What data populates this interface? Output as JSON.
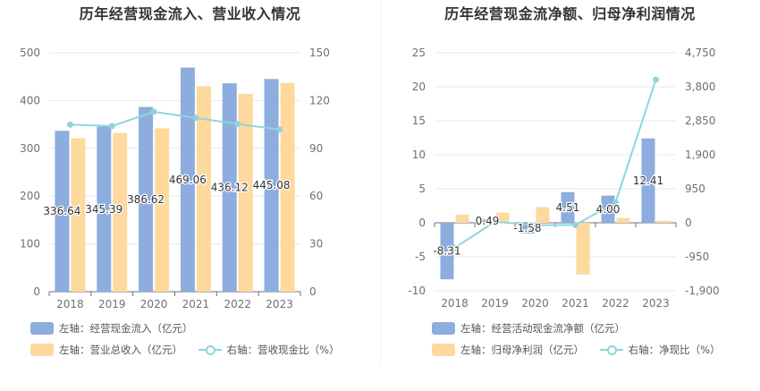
{
  "colors": {
    "bar_primary": "#8daddf",
    "bar_secondary": "#fdd99e",
    "line": "#8ed5dd",
    "axis_text": "#6e7079",
    "grid": "#e6e9ef",
    "label_text": "#333333"
  },
  "left": {
    "title": "历年经营现金流入、营业收入情况",
    "legend": {
      "series1": "左轴：经营现金流入（亿元）",
      "series2": "左轴：营业总收入（亿元）",
      "series3": "右轴：营收现金比（%）"
    }
  },
  "right": {
    "title": "历年经营现金流净额、归母净利润情况",
    "legend": {
      "series1": "左轴：经营活动现金流净额（亿元）",
      "series2": "左轴：归母净利润（亿元）",
      "series3": "右轴：净现比（%）"
    }
  },
  "chart_data": [
    {
      "type": "bar",
      "title": "历年经营现金流入、营业收入情况",
      "categories": [
        "2018",
        "2019",
        "2020",
        "2021",
        "2022",
        "2023"
      ],
      "y_left": {
        "range": [
          0,
          500
        ],
        "ticks": [
          "0",
          "100",
          "200",
          "300",
          "400",
          "500"
        ]
      },
      "y_right": {
        "range": [
          0,
          150
        ],
        "ticks": [
          "0",
          "30",
          "60",
          "90",
          "120",
          "150"
        ]
      },
      "grid": true,
      "series": [
        {
          "name": "左轴：经营现金流入（亿元）",
          "type": "bar",
          "axis": "left",
          "values": [
            336.64,
            345.39,
            386.62,
            469.06,
            436.12,
            445.08
          ],
          "labels": [
            "336.64",
            "345.39",
            "386.62",
            "469.06",
            "436.12",
            "445.08"
          ]
        },
        {
          "name": "左轴：营业总收入（亿元）",
          "type": "bar",
          "axis": "left",
          "values": [
            321,
            332,
            342,
            430,
            414,
            437
          ]
        },
        {
          "name": "右轴：营收现金比（%）",
          "type": "line",
          "axis": "right",
          "values": [
            104.9,
            104.0,
            113.0,
            109.1,
            105.3,
            101.8
          ]
        }
      ]
    },
    {
      "type": "bar",
      "title": "历年经营现金流净额、归母净利润情况",
      "categories": [
        "2018",
        "2019",
        "2020",
        "2021",
        "2022",
        "2023"
      ],
      "y_left": {
        "range": [
          -10,
          25
        ],
        "ticks": [
          "-10",
          "-5",
          "0",
          "5",
          "10",
          "15",
          "20",
          "25"
        ]
      },
      "y_right": {
        "range": [
          -1900,
          4750
        ],
        "ticks": [
          "-1,900",
          "-950",
          "0",
          "950",
          "1,900",
          "2,850",
          "3,800",
          "4,750"
        ]
      },
      "grid": true,
      "series": [
        {
          "name": "左轴：经营活动现金流净额（亿元）",
          "type": "bar",
          "axis": "left",
          "values": [
            -8.31,
            0.49,
            -1.58,
            4.51,
            4.0,
            12.41
          ],
          "labels": [
            "-8.31",
            "0.49",
            "-1.58",
            "4.51",
            "4.00",
            "12.41"
          ]
        },
        {
          "name": "左轴：归母净利润（亿元）",
          "type": "bar",
          "axis": "left",
          "values": [
            1.2,
            1.5,
            2.3,
            -7.6,
            0.7,
            0.3
          ]
        },
        {
          "name": "右轴：净现比（%）",
          "type": "line",
          "axis": "right",
          "values": [
            -700,
            30,
            -70,
            -60,
            570,
            4000
          ]
        }
      ]
    }
  ]
}
